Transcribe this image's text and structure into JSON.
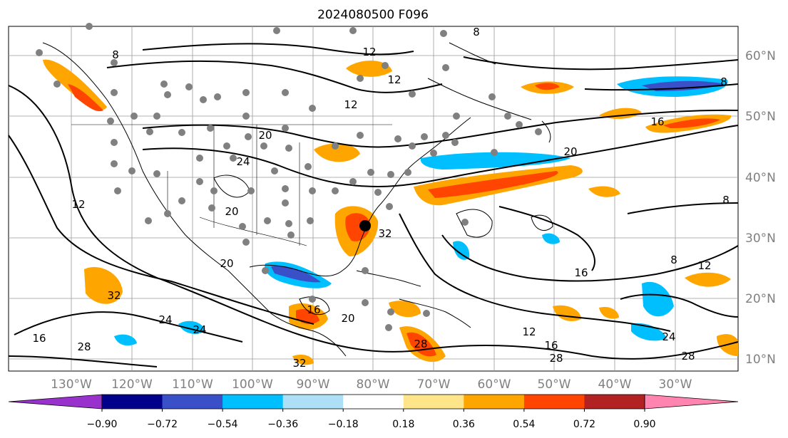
{
  "figure": {
    "title": "2024080500 F096"
  },
  "map": {
    "latitude_labels": [
      "60°N",
      "50°N",
      "40°N",
      "30°N",
      "20°N",
      "10°N"
    ],
    "longitude_labels": [
      "130°W",
      "120°W",
      "110°W",
      "100°W",
      "90°W",
      "80°W",
      "70°W",
      "60°W",
      "50°W",
      "40°W",
      "30°W"
    ],
    "contour_labels": [
      "8",
      "12",
      "12",
      "8",
      "20",
      "12",
      "16",
      "24",
      "20",
      "20",
      "16",
      "12",
      "8",
      "16",
      "20",
      "24",
      "28",
      "32",
      "12",
      "16",
      "28",
      "24",
      "28",
      "32",
      "28",
      "32",
      "24",
      "20",
      "16",
      "12",
      "8",
      "8"
    ],
    "storm_center_marker": "black-dot"
  },
  "colorbar": {
    "tick_labels": [
      "−0.90",
      "−0.72",
      "−0.54",
      "−0.36",
      "−0.18",
      "0.18",
      "0.36",
      "0.54",
      "0.72",
      "0.90"
    ],
    "colors": [
      "#9932CC",
      "#00008B",
      "#3A50C8",
      "#00BFFF",
      "#ADDFF7",
      "#FFFFFF",
      "#FFE58A",
      "#FFA500",
      "#FF4500",
      "#B22222",
      "#FF85B0"
    ]
  }
}
